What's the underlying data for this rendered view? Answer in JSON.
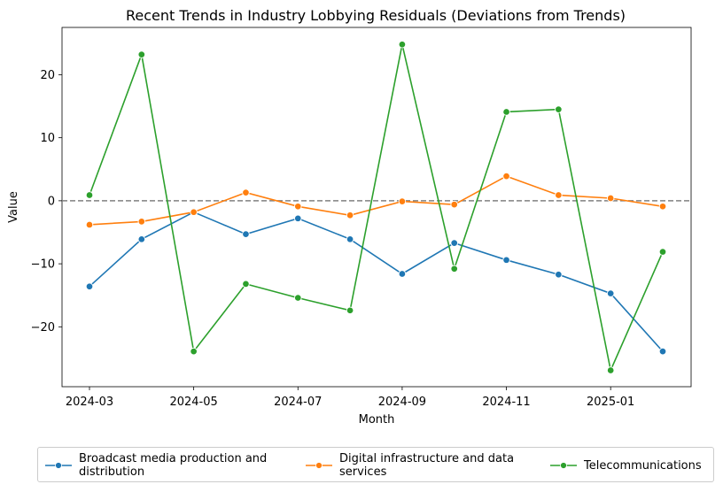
{
  "chart_data": {
    "type": "line",
    "title": "Recent Trends in Industry Lobbying Residuals (Deviations from Trends)",
    "xlabel": "Month",
    "ylabel": "Value",
    "x": [
      "2024-03",
      "2024-04",
      "2024-05",
      "2024-06",
      "2024-07",
      "2024-08",
      "2024-09",
      "2024-10",
      "2024-11",
      "2024-12",
      "2025-01",
      "2025-02"
    ],
    "x_ticks": [
      "2024-03",
      "2024-05",
      "2024-07",
      "2024-09",
      "2024-11",
      "2025-01"
    ],
    "y_ticks": [
      -20,
      -10,
      0,
      10,
      20
    ],
    "y_tick_labels": [
      "−20",
      "−10",
      "0",
      "10",
      "20"
    ],
    "ylim": [
      -29.5,
      27.5
    ],
    "reference_line": 0,
    "grid": false,
    "legend_position": "bottom-center",
    "series": [
      {
        "name": "Broadcast media production and distribution",
        "legend_label": [
          "Broadcast media production and",
          "distribution"
        ],
        "color": "#1f77b4",
        "values": [
          -13.6,
          -6.1,
          -1.8,
          -5.3,
          -2.8,
          -6.1,
          -11.6,
          -6.7,
          -9.4,
          -11.7,
          -14.7,
          -23.9
        ]
      },
      {
        "name": "Digital infrastructure and data services",
        "legend_label": [
          "Digital infrastructure and data",
          "services"
        ],
        "color": "#ff7f0e",
        "values": [
          -3.8,
          -3.3,
          -1.8,
          1.3,
          -0.9,
          -2.3,
          -0.1,
          -0.6,
          3.9,
          0.9,
          0.4,
          -0.9
        ]
      },
      {
        "name": "Telecommunications",
        "legend_label": [
          "Telecommunications"
        ],
        "color": "#2ca02c",
        "values": [
          0.9,
          23.2,
          -23.9,
          -13.2,
          -15.4,
          -17.4,
          24.8,
          -10.8,
          14.1,
          14.5,
          -26.9,
          -8.1
        ]
      }
    ]
  }
}
